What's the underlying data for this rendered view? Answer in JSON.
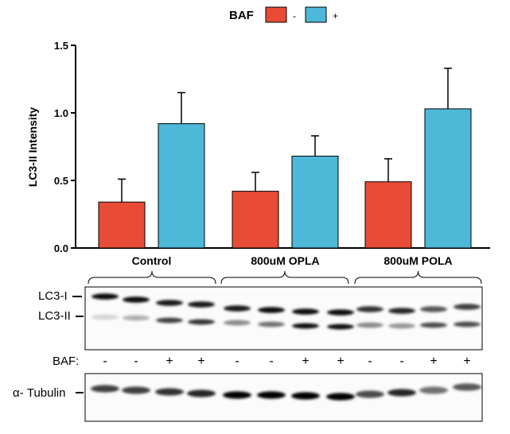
{
  "chart_data": {
    "type": "bar",
    "legend": {
      "title": "BAF",
      "placement": "top-center",
      "entries": [
        {
          "label": "-",
          "color": "#e84b36"
        },
        {
          "label": "+",
          "color": "#4db8d8"
        }
      ]
    },
    "ylabel": "LC3-II Intensity",
    "xlabel": "",
    "ylim": [
      0,
      1.5
    ],
    "yticks": [
      "0.0",
      "0.5",
      "1.0",
      "1.5"
    ],
    "grid": false,
    "categories": [
      "Control",
      "800uM OPLA",
      "800uM POLA"
    ],
    "series": [
      {
        "name": "-",
        "color": "#e84b36",
        "values": [
          0.34,
          0.42,
          0.49
        ],
        "errors": [
          0.17,
          0.14,
          0.17
        ]
      },
      {
        "name": "+",
        "color": "#4db8d8",
        "values": [
          0.92,
          0.68,
          1.03
        ],
        "errors": [
          0.23,
          0.15,
          0.3
        ]
      }
    ]
  },
  "blot": {
    "row1_labels": [
      "LC3-I",
      "LC3-II"
    ],
    "baf_label": "BAF:",
    "baf_signs": [
      "-",
      "-",
      "+",
      "+",
      "-",
      "-",
      "+",
      "+",
      "-",
      "-",
      "+",
      "+"
    ],
    "row2_label": "α- Tubulin"
  }
}
